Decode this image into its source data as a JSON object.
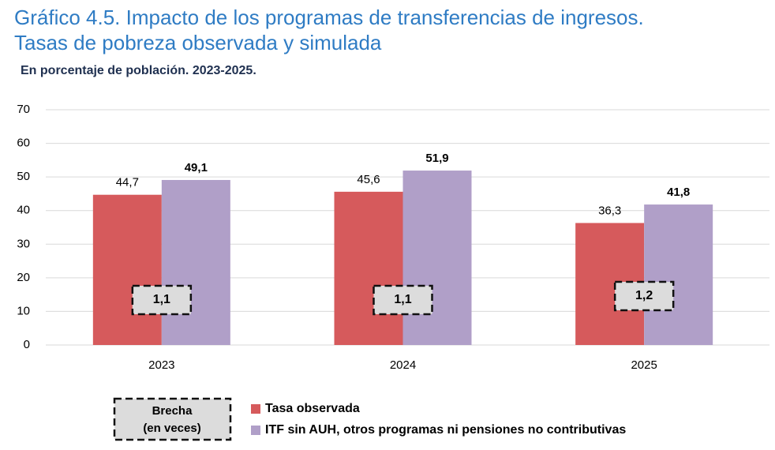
{
  "chart_data": {
    "type": "bar",
    "title": [
      "Gráfico 4.5. Impacto de los programas de transferencias de ingresos.",
      "Tasas de pobreza observada y simulada"
    ],
    "subtitle": "En porcentaje de población. 2023-2025.",
    "categories": [
      "2023",
      "2024",
      "2025"
    ],
    "series": [
      {
        "name": "Tasa observada",
        "color": "#d65a5c",
        "values": [
          44.7,
          45.6,
          36.3
        ],
        "value_labels": [
          "44,7",
          "45,6",
          "36,3"
        ]
      },
      {
        "name": "ITF sin AUH, otros programas ni pensiones no contributivas",
        "color": "#b09fc8",
        "values": [
          49.1,
          51.9,
          41.8
        ],
        "value_labels": [
          "49,1",
          "51,9",
          "41,8"
        ]
      }
    ],
    "gaps": {
      "name": [
        "Brecha",
        "(en veces)"
      ],
      "values": [
        1.1,
        1.1,
        1.2
      ],
      "value_labels": [
        "1,1",
        "1,1",
        "1,2"
      ]
    },
    "ylim": [
      0,
      70
    ],
    "yticks": [
      0,
      10,
      20,
      30,
      40,
      50,
      60,
      70
    ],
    "grid": true
  }
}
